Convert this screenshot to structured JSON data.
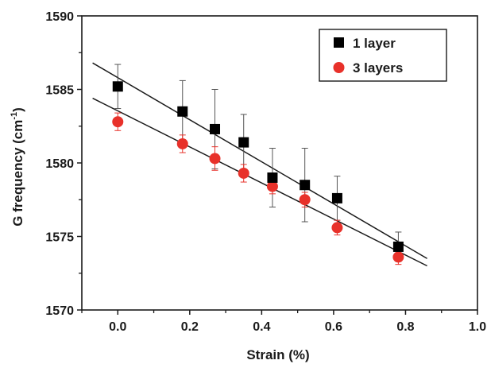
{
  "chart_data": {
    "type": "scatter",
    "title": "",
    "xlabel": "Strain (%)",
    "ylabel": "G frequency (cm",
    "ylabel_sup": "-1",
    "ylabel_close": ")",
    "xlim": [
      -0.1,
      1.0
    ],
    "ylim": [
      1570,
      1590
    ],
    "xticks": [
      0.0,
      0.2,
      0.4,
      0.6,
      0.8,
      1.0
    ],
    "xtick_labels": [
      "0.0",
      "0.2",
      "0.4",
      "0.6",
      "0.8",
      "1.0"
    ],
    "yticks": [
      1570,
      1575,
      1580,
      1585,
      1590
    ],
    "ytick_labels": [
      "1570",
      "1575",
      "1580",
      "1585",
      "1590"
    ],
    "grid": false,
    "legend_position": "top-right",
    "series": [
      {
        "name": "1 layer",
        "marker": "square",
        "color": "#000000",
        "x": [
          0.0,
          0.18,
          0.27,
          0.35,
          0.43,
          0.52,
          0.61,
          0.78
        ],
        "y": [
          1585.2,
          1583.5,
          1582.3,
          1581.4,
          1579.0,
          1578.5,
          1577.6,
          1574.3
        ],
        "yerr": [
          1.5,
          2.1,
          2.7,
          1.9,
          2.0,
          2.5,
          1.5,
          1.0
        ],
        "fit": {
          "x": [
            -0.07,
            0.86
          ],
          "y": [
            1586.8,
            1573.5
          ]
        }
      },
      {
        "name": "3 layers",
        "marker": "circle",
        "color": "#e8312a",
        "x": [
          0.0,
          0.18,
          0.27,
          0.35,
          0.43,
          0.52,
          0.61,
          0.78
        ],
        "y": [
          1582.8,
          1581.3,
          1580.3,
          1579.3,
          1578.4,
          1577.5,
          1575.6,
          1573.6
        ],
        "yerr": [
          0.6,
          0.6,
          0.8,
          0.6,
          0.5,
          0.5,
          0.5,
          0.5
        ],
        "fit": {
          "x": [
            -0.07,
            0.86
          ],
          "y": [
            1584.4,
            1573.0
          ]
        }
      }
    ]
  }
}
